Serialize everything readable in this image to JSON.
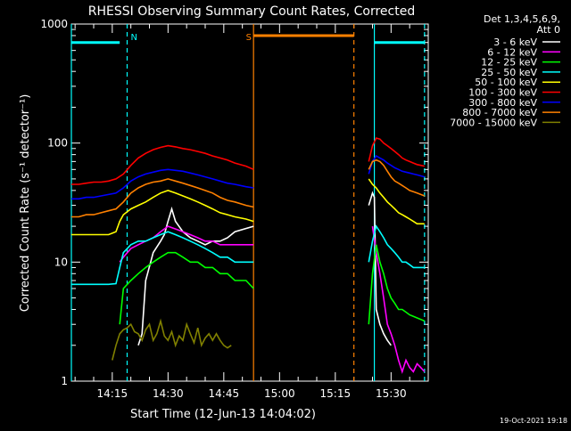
{
  "chart_data": {
    "type": "line",
    "title": "RHESSI Observing Summary Count Rates, Corrected",
    "xlabel": "Start Time (12-Jun-13 14:04:02)",
    "ylabel": "Corrected Count Rate (s⁻¹ detector⁻¹)",
    "ylog": true,
    "ylim": [
      1,
      1000
    ],
    "xlim_minutes": [
      0,
      96
    ],
    "ytick_labels": [
      {
        "v": 1,
        "label": "1"
      },
      {
        "v": 10,
        "label": "10"
      },
      {
        "v": 100,
        "label": "100"
      },
      {
        "v": 1000,
        "label": "1000"
      }
    ],
    "xtick_labels": [
      {
        "t": 11,
        "label": "14:15"
      },
      {
        "t": 26,
        "label": "14:30"
      },
      {
        "t": 41,
        "label": "14:45"
      },
      {
        "t": 56,
        "label": "15:00"
      },
      {
        "t": 71,
        "label": "15:15"
      },
      {
        "t": 86,
        "label": "15:30"
      }
    ],
    "legend_header": [
      "Det 1,3,4,5,6,9,",
      "Att 0"
    ],
    "footer_date": "19-Oct-2021 19:18",
    "series": [
      {
        "name": "3 - 6 keV",
        "color": "#ffffff",
        "segments": [
          {
            "x": [
              18,
              19,
              20,
              22,
              24,
              25,
              26,
              27,
              28,
              30,
              32,
              34,
              36,
              38,
              40,
              42,
              44,
              49
            ],
            "y": [
              2,
              2.5,
              7,
              12,
              15,
              17,
              22,
              28,
              22,
              18,
              16,
              15,
              14,
              15,
              15,
              16,
              18,
              20
            ]
          },
          {
            "x": [
              80,
              81,
              81.5,
              82,
              83,
              84,
              85,
              86
            ],
            "y": [
              30,
              38,
              35,
              4,
              3,
              2.5,
              2.2,
              2
            ]
          }
        ]
      },
      {
        "name": "6 - 12 keV",
        "color": "#ff00ff",
        "segments": [
          {
            "x": [
              13,
              14,
              16,
              18,
              20,
              22,
              24,
              26,
              28,
              30,
              32,
              34,
              36,
              38,
              40,
              42,
              44,
              49
            ],
            "y": [
              10,
              11,
              13,
              14,
              15,
              16,
              18,
              20,
              19,
              18,
              17,
              16,
              15,
              15,
              14,
              14,
              14,
              14
            ]
          },
          {
            "x": [
              81,
              82,
              83,
              84,
              85,
              86,
              87,
              88,
              89,
              90,
              91,
              92,
              93,
              94,
              95
            ],
            "y": [
              20,
              12,
              8,
              5,
              3,
              2.5,
              2,
              1.5,
              1.2,
              1.5,
              1.3,
              1.2,
              1.4,
              1.3,
              1.2
            ]
          }
        ]
      },
      {
        "name": "12 - 25 keV",
        "color": "#00ff00",
        "segments": [
          {
            "x": [
              13,
              14,
              16,
              18,
              20,
              22,
              24,
              26,
              28,
              30,
              32,
              34,
              36,
              38,
              40,
              42,
              44,
              47,
              49
            ],
            "y": [
              3,
              6,
              7,
              8,
              9,
              10,
              11,
              12,
              12,
              11,
              10,
              10,
              9,
              9,
              8,
              8,
              7,
              7,
              6
            ]
          },
          {
            "x": [
              80,
              81,
              82,
              83,
              84,
              85,
              86,
              87,
              88,
              89,
              90,
              91,
              92,
              93,
              94,
              95
            ],
            "y": [
              3,
              8,
              14,
              10,
              8,
              6,
              5,
              4.5,
              4,
              4,
              3.8,
              3.6,
              3.5,
              3.4,
              3.3,
              3.2
            ]
          }
        ]
      },
      {
        "name": "25 - 50 keV",
        "color": "#00ffff",
        "segments": [
          {
            "x": [
              0,
              2,
              4,
              6,
              8,
              10,
              12,
              13,
              14,
              16,
              18,
              20,
              22,
              24,
              26,
              28,
              30,
              32,
              34,
              36,
              38,
              40,
              42,
              44,
              47,
              49
            ],
            "y": [
              6.5,
              6.5,
              6.5,
              6.5,
              6.5,
              6.5,
              6.6,
              9,
              12,
              14,
              15,
              15,
              16,
              17,
              18,
              17,
              16,
              15,
              14,
              13,
              12,
              11,
              11,
              10,
              10,
              10
            ]
          },
          {
            "x": [
              80,
              81,
              82,
              83,
              84,
              85,
              86,
              87,
              88,
              89,
              90,
              91,
              92,
              93,
              94,
              95
            ],
            "y": [
              10,
              15,
              20,
              18,
              16,
              14,
              13,
              12,
              11,
              10,
              10,
              9.5,
              9,
              9,
              9,
              9
            ]
          }
        ]
      },
      {
        "name": "50 - 100 keV",
        "color": "#ffff00",
        "segments": [
          {
            "x": [
              0,
              2,
              4,
              6,
              8,
              10,
              12,
              13,
              14,
              16,
              18,
              20,
              22,
              24,
              26,
              28,
              30,
              32,
              34,
              36,
              38,
              40,
              42,
              44,
              47,
              49
            ],
            "y": [
              17,
              17,
              17,
              17,
              17,
              17,
              18,
              22,
              25,
              28,
              30,
              32,
              35,
              38,
              40,
              38,
              36,
              34,
              32,
              30,
              28,
              26,
              25,
              24,
              23,
              22
            ]
          },
          {
            "x": [
              80,
              81,
              82,
              83,
              84,
              85,
              86,
              87,
              88,
              89,
              90,
              91,
              92,
              93,
              94,
              95
            ],
            "y": [
              50,
              45,
              42,
              38,
              35,
              32,
              30,
              28,
              26,
              25,
              24,
              23,
              22,
              21,
              21,
              21
            ]
          }
        ]
      },
      {
        "name": "100 - 300 keV",
        "color": "#ff0000",
        "segments": [
          {
            "x": [
              0,
              2,
              4,
              6,
              8,
              10,
              12,
              14,
              16,
              18,
              20,
              22,
              24,
              26,
              28,
              30,
              32,
              34,
              36,
              38,
              40,
              42,
              44,
              47,
              49
            ],
            "y": [
              45,
              45,
              46,
              47,
              47,
              48,
              50,
              55,
              65,
              75,
              82,
              88,
              92,
              95,
              93,
              90,
              88,
              85,
              82,
              78,
              75,
              72,
              68,
              64,
              60
            ]
          },
          {
            "x": [
              80,
              81,
              82,
              83,
              84,
              85,
              86,
              87,
              88,
              89,
              90,
              91,
              92,
              93,
              94,
              95
            ],
            "y": [
              70,
              95,
              110,
              108,
              100,
              95,
              90,
              85,
              80,
              75,
              72,
              70,
              68,
              66,
              65,
              64
            ]
          }
        ]
      },
      {
        "name": "300 - 800 keV",
        "color": "#0000ff",
        "segments": [
          {
            "x": [
              0,
              2,
              4,
              6,
              8,
              10,
              12,
              14,
              16,
              18,
              20,
              22,
              24,
              26,
              28,
              30,
              32,
              34,
              36,
              38,
              40,
              42,
              44,
              47,
              49
            ],
            "y": [
              34,
              34,
              35,
              35,
              36,
              37,
              38,
              42,
              48,
              52,
              55,
              57,
              59,
              60,
              59,
              58,
              56,
              54,
              52,
              50,
              48,
              46,
              45,
              43,
              42
            ]
          },
          {
            "x": [
              80,
              81,
              82,
              83,
              84,
              85,
              86,
              87,
              88,
              89,
              90,
              91,
              92,
              93,
              94,
              95
            ],
            "y": [
              55,
              70,
              78,
              75,
              72,
              68,
              65,
              62,
              60,
              58,
              57,
              56,
              55,
              54,
              53,
              52
            ]
          }
        ]
      },
      {
        "name": "800 - 7000 keV",
        "color": "#ff8000",
        "segments": [
          {
            "x": [
              0,
              2,
              4,
              6,
              8,
              10,
              12,
              14,
              16,
              18,
              20,
              22,
              24,
              26,
              28,
              30,
              32,
              34,
              36,
              38,
              40,
              42,
              44,
              47,
              49
            ],
            "y": [
              24,
              24,
              25,
              25,
              26,
              27,
              28,
              32,
              38,
              42,
              45,
              47,
              48,
              50,
              48,
              46,
              44,
              42,
              40,
              38,
              35,
              33,
              32,
              30,
              29
            ]
          },
          {
            "x": [
              80,
              81,
              82,
              83,
              84,
              85,
              86,
              87,
              88,
              89,
              90,
              91,
              92,
              93,
              94,
              95
            ],
            "y": [
              60,
              70,
              72,
              70,
              65,
              58,
              52,
              48,
              46,
              44,
              42,
              40,
              39,
              38,
              37,
              36
            ]
          }
        ]
      },
      {
        "name": "7000 - 15000 keV",
        "color": "#808000",
        "segments": [
          {
            "x": [
              11,
              12,
              13,
              14,
              15,
              16,
              17,
              18,
              19,
              20,
              21,
              22,
              23,
              24,
              25,
              26,
              27,
              28,
              29,
              30,
              31,
              32,
              33,
              34,
              35,
              36,
              37,
              38,
              39,
              40,
              41,
              42,
              43
            ],
            "y": [
              1.5,
              2,
              2.5,
              2.7,
              2.8,
              3,
              2.6,
              2.5,
              2.2,
              2.7,
              3,
              2.2,
              2.5,
              3.2,
              2.4,
              2.2,
              2.6,
              2,
              2.4,
              2.2,
              3,
              2.5,
              2.1,
              2.8,
              2,
              2.3,
              2.5,
              2.2,
              2.5,
              2.2,
              2,
              1.9,
              2
            ]
          }
        ]
      }
    ],
    "markers": [
      {
        "label": "N",
        "color": "#00ffff",
        "t": 15,
        "bar_start": 0,
        "bar_end": 13,
        "bar_y": 700
      },
      {
        "label": "S",
        "color": "#ff8000",
        "t": 46,
        "bar_start": 49,
        "bar_end": 76,
        "bar_y": 800
      }
    ],
    "vlines": [
      {
        "t": 0,
        "color": "#00ffff",
        "style": "solid"
      },
      {
        "t": 15,
        "color": "#00ffff",
        "style": "dashed"
      },
      {
        "t": 49,
        "color": "#ff8000",
        "style": "solid"
      },
      {
        "t": 76,
        "color": "#ff8000",
        "style": "dashed"
      },
      {
        "t": 81.5,
        "color": "#00ffff",
        "style": "solid"
      },
      {
        "t": 95,
        "color": "#00ffff",
        "style": "dashed"
      }
    ],
    "bars": [
      {
        "t_start": 81.5,
        "t_end": 95,
        "y": 700,
        "color": "#00ffff"
      }
    ]
  }
}
